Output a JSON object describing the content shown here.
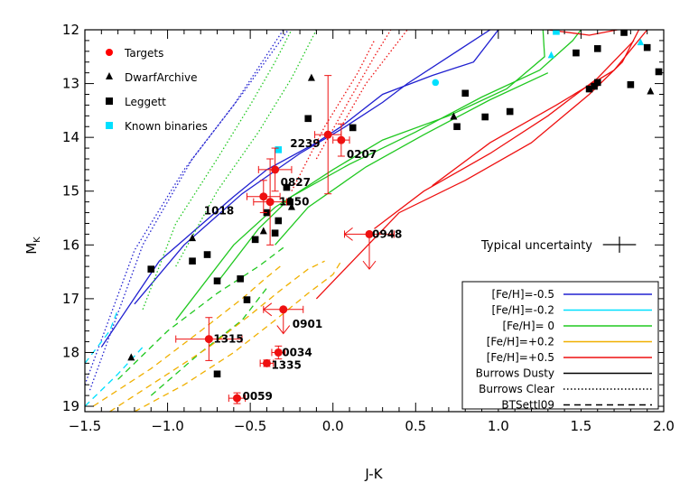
{
  "chart_data": {
    "type": "scatter",
    "title": "",
    "xlabel": "J-K",
    "ylabel_main": "M",
    "ylabel_sub": "K",
    "xlim": [
      -1.5,
      2.0
    ],
    "ylim": [
      19.1,
      12.0
    ],
    "y_inverted": true,
    "xticks": [
      {
        "v": -1.5,
        "label": "−1.5"
      },
      {
        "v": -1.0,
        "label": "−1.0"
      },
      {
        "v": -0.5,
        "label": "−0.5"
      },
      {
        "v": 0.0,
        "label": "0.0"
      },
      {
        "v": 0.5,
        "label": "0.5"
      },
      {
        "v": 1.0,
        "label": "1.0"
      },
      {
        "v": 1.5,
        "label": "1.5"
      },
      {
        "v": 2.0,
        "label": "2.0"
      }
    ],
    "yticks": [
      {
        "v": 12,
        "label": "12"
      },
      {
        "v": 13,
        "label": "13"
      },
      {
        "v": 14,
        "label": "14"
      },
      {
        "v": 15,
        "label": "15"
      },
      {
        "v": 16,
        "label": "16"
      },
      {
        "v": 17,
        "label": "17"
      },
      {
        "v": 18,
        "label": "18"
      },
      {
        "v": 19,
        "label": "19"
      }
    ],
    "marker_legend": [
      {
        "name": "Targets",
        "color": "#ff0000",
        "marker": "circle"
      },
      {
        "name": "DwarfArchive",
        "color": "#000000",
        "marker": "triangle"
      },
      {
        "name": "Leggett",
        "color": "#000000",
        "marker": "square"
      },
      {
        "name": "Known binaries",
        "color": "#00e0ff",
        "marker": "square"
      }
    ],
    "line_legend": [
      {
        "name": "[Fe/H]=-0.5",
        "color": "#2020d0",
        "dash": "solid"
      },
      {
        "name": "[Fe/H]=-0.2",
        "color": "#00e0ff",
        "dash": "solid"
      },
      {
        "name": "[Fe/H]= 0",
        "color": "#20c820",
        "dash": "solid"
      },
      {
        "name": "[Fe/H]=+0.2",
        "color": "#f0b000",
        "dash": "solid"
      },
      {
        "name": "[Fe/H]=+0.5",
        "color": "#ee1010",
        "dash": "solid"
      },
      {
        "name": "Burrows Dusty",
        "color": "#000000",
        "dash": "solid"
      },
      {
        "name": "Burrows Clear",
        "color": "#000000",
        "dash": "dotted"
      },
      {
        "name": "BTSettl09",
        "color": "#000000",
        "dash": "dashed"
      }
    ],
    "typical_uncertainty": {
      "label": "Typical uncertainty",
      "x_err": 0.1,
      "y_err": 0.15
    },
    "targets": [
      {
        "name": "2239",
        "x": -0.03,
        "y": 13.95,
        "xerr": 0.08,
        "yerr": 1.1
      },
      {
        "name": "0207",
        "x": 0.05,
        "y": 14.05,
        "xerr": 0.05,
        "yerr": 0.3
      },
      {
        "name": "0827",
        "x": -0.35,
        "y": 14.6,
        "xerr": 0.1,
        "yerr": 0.4
      },
      {
        "name": "1018",
        "x": -0.42,
        "y": 15.1,
        "xerr": 0.1,
        "yerr": 0.3
      },
      {
        "name": "1150",
        "x": -0.38,
        "y": 15.2,
        "xerr": 0.1,
        "yerr": 0.8
      },
      {
        "name": "0948",
        "x": 0.22,
        "y": 15.8,
        "xerr": 0.15,
        "yerr": 0.35,
        "upper_limit": true
      },
      {
        "name": "0901",
        "x": -0.3,
        "y": 17.2,
        "xerr": 0.12,
        "yerr": 0.15,
        "upper_limit": true
      },
      {
        "name": "1315",
        "x": -0.75,
        "y": 17.75,
        "xerr": 0.2,
        "yerr": 0.4
      },
      {
        "name": "0034",
        "x": -0.33,
        "y": 18.0,
        "xerr": 0.04,
        "yerr": 0.12
      },
      {
        "name": "1335",
        "x": -0.4,
        "y": 18.2,
        "xerr": 0.04,
        "yerr": 0.06
      },
      {
        "name": "0059",
        "x": -0.58,
        "y": 18.85,
        "xerr": 0.05,
        "yerr": 0.1
      }
    ],
    "dwarfarchive": [
      {
        "x": -0.13,
        "y": 12.9
      },
      {
        "x": -0.85,
        "y": 15.88
      },
      {
        "x": -0.25,
        "y": 15.3
      },
      {
        "x": -0.42,
        "y": 15.75
      },
      {
        "x": -1.22,
        "y": 18.1
      },
      {
        "x": 0.73,
        "y": 13.62
      },
      {
        "x": 1.92,
        "y": 13.15
      }
    ],
    "leggett": [
      {
        "x": -1.1,
        "y": 16.45
      },
      {
        "x": -0.85,
        "y": 16.3
      },
      {
        "x": -0.76,
        "y": 16.18
      },
      {
        "x": -0.7,
        "y": 16.67
      },
      {
        "x": -0.56,
        "y": 16.63
      },
      {
        "x": -0.52,
        "y": 17.02
      },
      {
        "x": -0.47,
        "y": 15.9
      },
      {
        "x": -0.4,
        "y": 15.4
      },
      {
        "x": -0.35,
        "y": 15.78
      },
      {
        "x": -0.33,
        "y": 15.55
      },
      {
        "x": -0.28,
        "y": 14.93
      },
      {
        "x": -0.26,
        "y": 15.2
      },
      {
        "x": -0.15,
        "y": 13.65
      },
      {
        "x": 0.12,
        "y": 13.82
      },
      {
        "x": 0.75,
        "y": 13.8
      },
      {
        "x": 0.8,
        "y": 13.18
      },
      {
        "x": 0.92,
        "y": 13.62
      },
      {
        "x": 1.07,
        "y": 13.52
      },
      {
        "x": 1.47,
        "y": 12.43
      },
      {
        "x": 1.55,
        "y": 13.1
      },
      {
        "x": 1.58,
        "y": 13.05
      },
      {
        "x": 1.6,
        "y": 12.98
      },
      {
        "x": 1.6,
        "y": 12.35
      },
      {
        "x": 1.76,
        "y": 12.05
      },
      {
        "x": 1.8,
        "y": 13.02
      },
      {
        "x": 1.9,
        "y": 12.33
      },
      {
        "x": 1.97,
        "y": 12.78
      },
      {
        "x": -0.7,
        "y": 18.4
      }
    ],
    "binaries": [
      {
        "x": -0.33,
        "y": 14.23,
        "marker": "square"
      },
      {
        "x": 0.62,
        "y": 12.98,
        "marker": "circle"
      },
      {
        "x": 1.35,
        "y": 12.03,
        "marker": "square"
      },
      {
        "x": 1.32,
        "y": 12.48,
        "marker": "triangle"
      },
      {
        "x": 1.86,
        "y": 12.24,
        "marker": "triangle"
      }
    ],
    "models": [
      {
        "color": "#2020d0",
        "dash": "solid",
        "pts": [
          [
            -1.4,
            17.9
          ],
          [
            -1.05,
            16.3
          ],
          [
            -0.6,
            15.1
          ],
          [
            -0.4,
            14.6
          ],
          [
            -0.1,
            14.1
          ],
          [
            0.05,
            13.8
          ],
          [
            0.3,
            13.2
          ],
          [
            0.6,
            12.85
          ],
          [
            0.85,
            12.6
          ],
          [
            1.0,
            12.0
          ]
        ]
      },
      {
        "color": "#2020d0",
        "dash": "solid",
        "pts": [
          [
            -1.2,
            17.1
          ],
          [
            -0.9,
            16.0
          ],
          [
            -0.55,
            15.05
          ],
          [
            -0.2,
            14.3
          ],
          [
            0.05,
            13.85
          ],
          [
            0.3,
            13.35
          ],
          [
            0.45,
            13.0
          ],
          [
            0.7,
            12.5
          ],
          [
            0.95,
            12.0
          ]
        ]
      },
      {
        "color": "#2020d0",
        "dash": "dotted",
        "pts": [
          [
            -1.5,
            18.6
          ],
          [
            -1.2,
            16.1
          ],
          [
            -0.9,
            14.6
          ],
          [
            -0.6,
            13.4
          ],
          [
            -0.45,
            12.7
          ],
          [
            -0.3,
            12.0
          ]
        ]
      },
      {
        "color": "#2020d0",
        "dash": "dotted",
        "pts": [
          [
            -1.47,
            18.7
          ],
          [
            -1.15,
            16.0
          ],
          [
            -0.85,
            14.4
          ],
          [
            -0.55,
            13.2
          ],
          [
            -0.4,
            12.55
          ],
          [
            -0.27,
            12.0
          ]
        ]
      },
      {
        "color": "#20c820",
        "dash": "solid",
        "pts": [
          [
            -0.95,
            17.4
          ],
          [
            -0.6,
            16.0
          ],
          [
            -0.35,
            15.3
          ],
          [
            0.0,
            14.6
          ],
          [
            0.3,
            14.05
          ],
          [
            0.7,
            13.6
          ],
          [
            1.05,
            13.1
          ],
          [
            1.28,
            12.5
          ],
          [
            1.27,
            12.0
          ]
        ]
      },
      {
        "color": "#20c820",
        "dash": "solid",
        "pts": [
          [
            -0.7,
            16.7
          ],
          [
            -0.45,
            15.7
          ],
          [
            -0.25,
            15.1
          ],
          [
            0.1,
            14.5
          ],
          [
            0.5,
            13.9
          ],
          [
            0.9,
            13.25
          ],
          [
            1.25,
            12.75
          ],
          [
            1.45,
            12.2
          ],
          [
            1.5,
            12.0
          ]
        ]
      },
      {
        "color": "#20c820",
        "dash": "solid",
        "pts": [
          [
            -0.35,
            16.0
          ],
          [
            -0.15,
            15.3
          ],
          [
            0.2,
            14.55
          ],
          [
            0.55,
            13.95
          ],
          [
            0.95,
            13.3
          ],
          [
            1.3,
            12.8
          ]
        ]
      },
      {
        "color": "#20c820",
        "dash": "dotted",
        "pts": [
          [
            -1.15,
            17.2
          ],
          [
            -0.95,
            15.6
          ],
          [
            -0.7,
            14.4
          ],
          [
            -0.5,
            13.4
          ],
          [
            -0.35,
            12.6
          ],
          [
            -0.25,
            12.0
          ]
        ]
      },
      {
        "color": "#20c820",
        "dash": "dotted",
        "pts": [
          [
            -0.95,
            16.4
          ],
          [
            -0.7,
            15.0
          ],
          [
            -0.45,
            13.9
          ],
          [
            -0.25,
            12.9
          ],
          [
            -0.1,
            12.0
          ]
        ]
      },
      {
        "color": "#20c820",
        "dash": "dashed",
        "pts": [
          [
            -1.3,
            18.5
          ],
          [
            -1.0,
            17.6
          ],
          [
            -0.7,
            16.9
          ],
          [
            -0.45,
            16.4
          ],
          [
            -0.3,
            16.05
          ]
        ]
      },
      {
        "color": "#20c820",
        "dash": "dashed",
        "pts": [
          [
            -1.1,
            18.8
          ],
          [
            -0.8,
            18.0
          ],
          [
            -0.55,
            17.4
          ],
          [
            -0.4,
            16.8
          ]
        ]
      },
      {
        "color": "#ee1010",
        "dash": "solid",
        "pts": [
          [
            -0.1,
            17.0
          ],
          [
            0.15,
            16.2
          ],
          [
            0.4,
            15.4
          ],
          [
            0.8,
            14.8
          ],
          [
            1.2,
            14.1
          ],
          [
            1.55,
            13.2
          ],
          [
            1.75,
            12.6
          ],
          [
            1.85,
            12.0
          ]
        ]
      },
      {
        "color": "#ee1010",
        "dash": "solid",
        "pts": [
          [
            0.25,
            15.7
          ],
          [
            0.55,
            15.0
          ],
          [
            0.95,
            14.3
          ],
          [
            1.3,
            13.6
          ],
          [
            1.6,
            12.9
          ],
          [
            1.82,
            12.2
          ]
        ]
      },
      {
        "color": "#ee1010",
        "dash": "solid",
        "pts": [
          [
            0.6,
            14.9
          ],
          [
            0.95,
            14.1
          ],
          [
            1.35,
            13.4
          ],
          [
            1.7,
            12.75
          ],
          [
            1.9,
            12.0
          ]
        ]
      },
      {
        "color": "#ee1010",
        "dash": "solid",
        "pts": [
          [
            1.3,
            12.0
          ],
          [
            1.55,
            12.1
          ],
          [
            1.72,
            12.0
          ]
        ]
      },
      {
        "color": "#ee1010",
        "dash": "dotted",
        "pts": [
          [
            -0.25,
            15.0
          ],
          [
            -0.05,
            13.8
          ],
          [
            0.15,
            12.8
          ],
          [
            0.25,
            12.2
          ]
        ]
      },
      {
        "color": "#ee1010",
        "dash": "dotted",
        "pts": [
          [
            -0.1,
            14.4
          ],
          [
            0.1,
            13.3
          ],
          [
            0.25,
            12.5
          ],
          [
            0.35,
            12.0
          ]
        ]
      },
      {
        "color": "#ee1010",
        "dash": "dotted",
        "pts": [
          [
            0.05,
            13.8
          ],
          [
            0.2,
            13.0
          ],
          [
            0.35,
            12.4
          ],
          [
            0.45,
            12.0
          ]
        ]
      },
      {
        "color": "#00e0ff",
        "dash": "dashed",
        "pts": [
          [
            -1.5,
            18.2
          ],
          [
            -1.35,
            17.6
          ],
          [
            -1.3,
            17.2
          ]
        ]
      },
      {
        "color": "#00e0ff",
        "dash": "dashed",
        "pts": [
          [
            -1.5,
            19.0
          ],
          [
            -1.3,
            18.4
          ],
          [
            -1.15,
            17.9
          ]
        ]
      },
      {
        "color": "#f0b000",
        "dash": "dashed",
        "pts": [
          [
            -1.45,
            19.0
          ],
          [
            -1.1,
            18.3
          ],
          [
            -0.8,
            17.6
          ],
          [
            -0.55,
            17.0
          ],
          [
            -0.4,
            16.6
          ],
          [
            -0.3,
            16.35
          ]
        ]
      },
      {
        "color": "#f0b000",
        "dash": "dashed",
        "pts": [
          [
            -1.35,
            19.1
          ],
          [
            -1.05,
            18.5
          ],
          [
            -0.75,
            17.9
          ],
          [
            -0.5,
            17.3
          ],
          [
            -0.3,
            16.8
          ],
          [
            -0.15,
            16.45
          ],
          [
            -0.05,
            16.3
          ]
        ]
      },
      {
        "color": "#f0b000",
        "dash": "dashed",
        "pts": [
          [
            -1.2,
            19.1
          ],
          [
            -0.9,
            18.6
          ],
          [
            -0.6,
            18.0
          ],
          [
            -0.35,
            17.4
          ],
          [
            -0.15,
            16.9
          ],
          [
            0.0,
            16.55
          ],
          [
            0.05,
            16.3
          ]
        ]
      }
    ]
  }
}
